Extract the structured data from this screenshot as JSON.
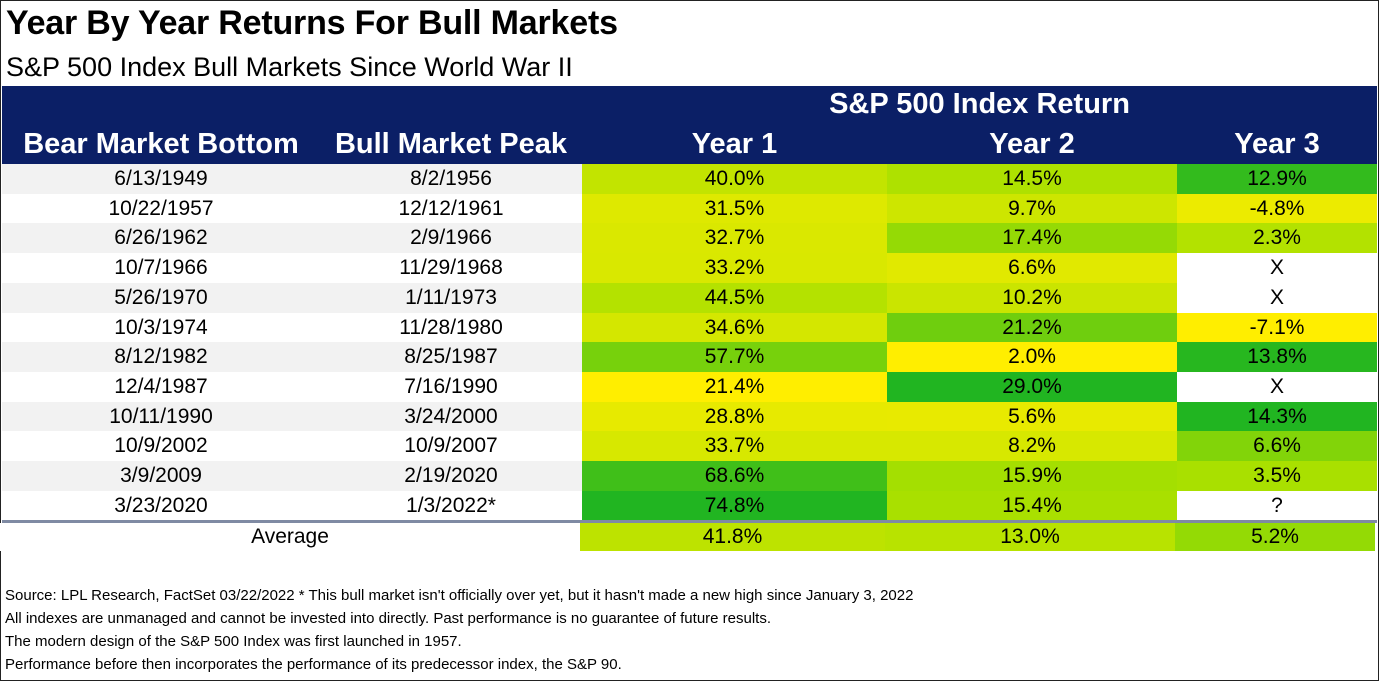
{
  "title": "Year By Year Returns For Bull Markets",
  "subtitle": "S&P 500 Index Bull Markets Since World War II",
  "header": {
    "group_label": "S&P 500 Index Return",
    "columns": [
      "Bear Market Bottom",
      "Bull Market Peak",
      "Year 1",
      "Year 2",
      "Year 3"
    ]
  },
  "colors": {
    "header_bg": "#0b1f66",
    "row_stripe": "#f2f2f2",
    "scale_low": "#ffee00",
    "scale_mid": "#a8e000",
    "scale_high": "#21b521"
  },
  "chart_data": {
    "type": "table",
    "title": "Year By Year Returns For Bull Markets",
    "subtitle": "S&P 500 Index Bull Markets Since World War II",
    "columns": [
      "Bear Market Bottom",
      "Bull Market Peak",
      "Year 1",
      "Year 2",
      "Year 3"
    ],
    "rows": [
      {
        "bottom": "6/13/1949",
        "peak": "8/2/1956",
        "y1": "40.0%",
        "y2": "14.5%",
        "y3": "12.9%"
      },
      {
        "bottom": "10/22/1957",
        "peak": "12/12/1961",
        "y1": "31.5%",
        "y2": "9.7%",
        "y3": "-4.8%"
      },
      {
        "bottom": "6/26/1962",
        "peak": "2/9/1966",
        "y1": "32.7%",
        "y2": "17.4%",
        "y3": "2.3%"
      },
      {
        "bottom": "10/7/1966",
        "peak": "11/29/1968",
        "y1": "33.2%",
        "y2": "6.6%",
        "y3": "X"
      },
      {
        "bottom": "5/26/1970",
        "peak": "1/11/1973",
        "y1": "44.5%",
        "y2": "10.2%",
        "y3": "X"
      },
      {
        "bottom": "10/3/1974",
        "peak": "11/28/1980",
        "y1": "34.6%",
        "y2": "21.2%",
        "y3": "-7.1%"
      },
      {
        "bottom": "8/12/1982",
        "peak": "8/25/1987",
        "y1": "57.7%",
        "y2": "2.0%",
        "y3": "13.8%"
      },
      {
        "bottom": "12/4/1987",
        "peak": "7/16/1990",
        "y1": "21.4%",
        "y2": "29.0%",
        "y3": "X"
      },
      {
        "bottom": "10/11/1990",
        "peak": "3/24/2000",
        "y1": "28.8%",
        "y2": "5.6%",
        "y3": "14.3%"
      },
      {
        "bottom": "10/9/2002",
        "peak": "10/9/2007",
        "y1": "33.7%",
        "y2": "8.2%",
        "y3": "6.6%"
      },
      {
        "bottom": "3/9/2009",
        "peak": "2/19/2020",
        "y1": "68.6%",
        "y2": "15.9%",
        "y3": "3.5%"
      },
      {
        "bottom": "3/23/2020",
        "peak": "1/3/2022*",
        "y1": "74.8%",
        "y2": "15.4%",
        "y3": "?"
      }
    ],
    "average": {
      "label": "Average",
      "y1": "41.8%",
      "y2": "13.0%",
      "y3": "5.2%"
    }
  },
  "footnotes": [
    "Source: LPL Research, FactSet 03/22/2022  * This bull market isn't officially over yet, but it hasn't made a new high since January 3, 2022",
    "All indexes are unmanaged and cannot be invested into directly. Past performance is no guarantee of future results.",
    "The modern design of the S&P 500 Index was first launched in 1957.",
    "Performance before then incorporates the performance of its predecessor index, the S&P 90."
  ]
}
